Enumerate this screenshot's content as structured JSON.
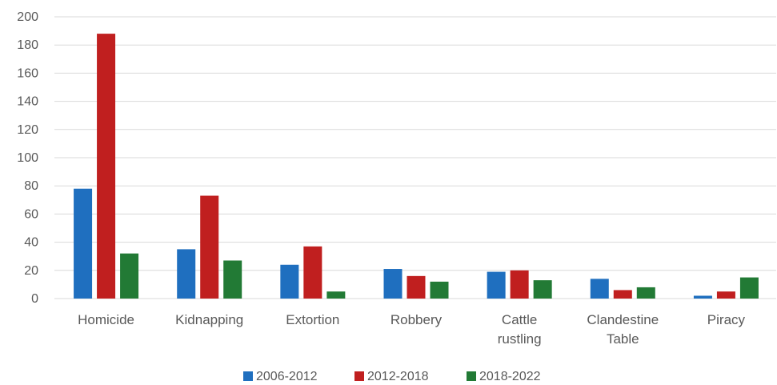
{
  "chart_data": {
    "type": "bar",
    "categories": [
      [
        "Homicide"
      ],
      [
        "Kidnapping"
      ],
      [
        "Extortion"
      ],
      [
        "Robbery"
      ],
      [
        "Cattle",
        "rustling"
      ],
      [
        "Clandestine",
        "Table"
      ],
      [
        "Piracy"
      ]
    ],
    "series": [
      {
        "name": "2006-2012",
        "color": "#1f6fbf",
        "values": [
          78,
          35,
          24,
          21,
          19,
          14,
          2
        ]
      },
      {
        "name": "2012-2018",
        "color": "#c01f1f",
        "values": [
          188,
          73,
          37,
          16,
          20,
          6,
          5
        ]
      },
      {
        "name": "2018-2022",
        "color": "#227a35",
        "values": [
          32,
          27,
          5,
          12,
          13,
          8,
          15
        ]
      }
    ],
    "ylim": [
      0,
      200
    ],
    "yticks": [
      "0",
      "20",
      "40",
      "60",
      "80",
      "100",
      "120",
      "140",
      "160",
      "180",
      "200"
    ],
    "grid": true,
    "legend_position": "bottom",
    "title": "",
    "xlabel": "",
    "ylabel": ""
  }
}
